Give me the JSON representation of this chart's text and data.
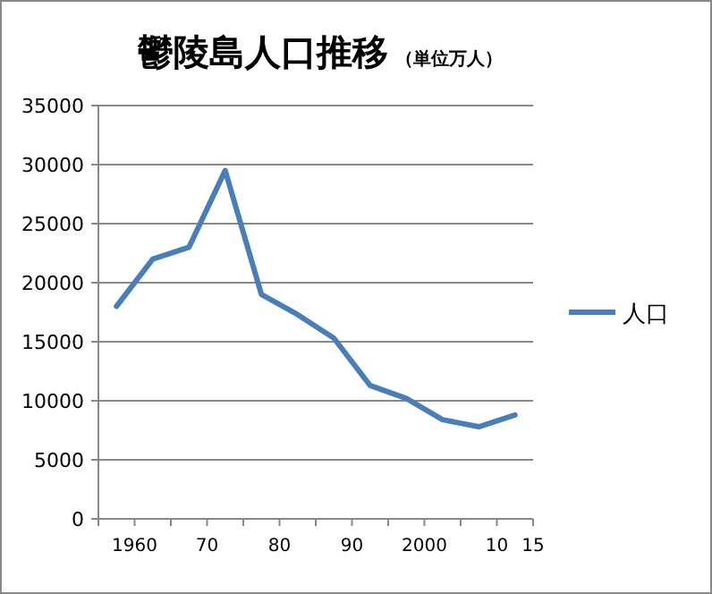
{
  "chart_data": {
    "type": "line",
    "title": "鬱陵島人口推移",
    "subtitle": "（単位万人）",
    "x": [
      1957.5,
      1962.5,
      1967.5,
      1972.5,
      1977.5,
      1982.5,
      1987.5,
      1992.5,
      1997.5,
      2002.5,
      2007.5,
      2012.5
    ],
    "series": [
      {
        "name": "人口",
        "color": "#4a7ebb",
        "values": [
          18000,
          22000,
          23000,
          29500,
          19000,
          17300,
          15300,
          11300,
          10200,
          8400,
          7800,
          8800
        ]
      }
    ],
    "xlim": [
      1955,
      2015
    ],
    "xticks": [
      {
        "value": 1955,
        "label": null
      },
      {
        "value": 1960,
        "label": "1960"
      },
      {
        "value": 1965,
        "label": null
      },
      {
        "value": 1970,
        "label": "70"
      },
      {
        "value": 1975,
        "label": null
      },
      {
        "value": 1980,
        "label": "80"
      },
      {
        "value": 1985,
        "label": null
      },
      {
        "value": 1990,
        "label": "90"
      },
      {
        "value": 1995,
        "label": null
      },
      {
        "value": 2000,
        "label": "2000"
      },
      {
        "value": 2005,
        "label": null
      },
      {
        "value": 2010,
        "label": "10"
      },
      {
        "value": 2015,
        "label": "15"
      }
    ],
    "ylim": [
      0,
      35000
    ],
    "yticks": [
      0,
      5000,
      10000,
      15000,
      20000,
      25000,
      30000,
      35000
    ],
    "grid": "y",
    "legend": "right",
    "marker": "none",
    "line_style": "solid"
  }
}
